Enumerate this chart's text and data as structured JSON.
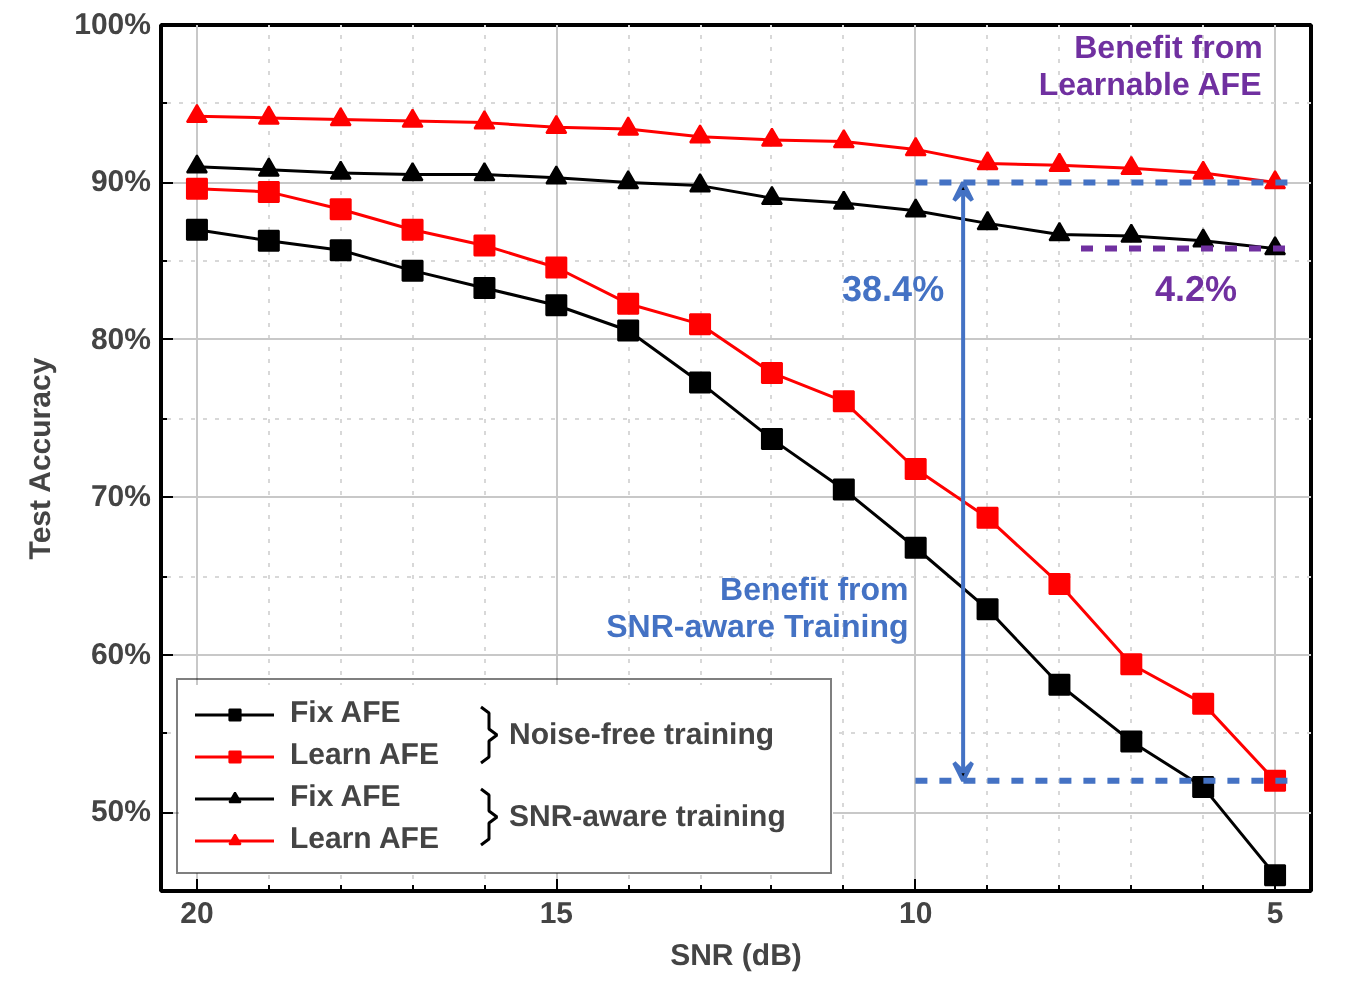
{
  "chart_data": {
    "type": "line",
    "xlabel": "SNR (dB)",
    "ylabel": "Test Accuracy",
    "x": [
      20,
      19,
      18,
      17,
      16,
      15,
      14,
      13,
      12,
      11,
      10,
      9,
      8,
      7,
      6,
      5
    ],
    "series": [
      {
        "name": "Fix AFE",
        "color": "#000000",
        "marker": "square",
        "values": [
          87.0,
          86.3,
          85.7,
          84.4,
          83.3,
          82.2,
          80.6,
          77.3,
          73.7,
          70.5,
          66.8,
          62.9,
          58.1,
          54.5,
          51.6,
          46.0
        ]
      },
      {
        "name": "Learn AFE",
        "color": "#ff0000",
        "marker": "square",
        "values": [
          89.6,
          89.4,
          88.3,
          87.0,
          86.0,
          84.6,
          82.3,
          81.0,
          77.9,
          76.1,
          71.8,
          68.7,
          64.5,
          59.4,
          56.9,
          52.0
        ]
      },
      {
        "name": "Fix AFE",
        "color": "#000000",
        "marker": "triangle",
        "values": [
          91.0,
          90.8,
          90.6,
          90.5,
          90.5,
          90.3,
          90.0,
          89.8,
          89.0,
          88.7,
          88.2,
          87.4,
          86.7,
          86.6,
          86.3,
          85.8
        ]
      },
      {
        "name": "Learn AFE",
        "color": "#ff0000",
        "marker": "triangle",
        "values": [
          94.2,
          94.1,
          94.0,
          93.9,
          93.8,
          93.5,
          93.4,
          92.9,
          92.7,
          92.6,
          92.1,
          91.2,
          91.1,
          90.9,
          90.6,
          90.0
        ]
      }
    ],
    "xlim": [
      20.5,
      4.5
    ],
    "ylim": [
      45,
      100
    ],
    "xticks": [
      20,
      {
        "value": 19,
        "label": null
      },
      {
        "value": 18,
        "label": null
      },
      {
        "value": 17,
        "label": null
      },
      {
        "value": 16,
        "label": null
      },
      15,
      {
        "value": 14,
        "label": null
      },
      {
        "value": 13,
        "label": null
      },
      {
        "value": 12,
        "label": null
      },
      {
        "value": 11,
        "label": null
      },
      10,
      {
        "value": 9,
        "label": null
      },
      {
        "value": 8,
        "label": null
      },
      {
        "value": 7,
        "label": null
      },
      {
        "value": 6,
        "label": null
      },
      5
    ],
    "yticks": [
      {
        "value": 50,
        "label": "50%"
      },
      {
        "value": 55,
        "label": null
      },
      {
        "value": 60,
        "label": "60%"
      },
      {
        "value": 65,
        "label": null
      },
      {
        "value": 70,
        "label": "70%"
      },
      {
        "value": 75,
        "label": null
      },
      {
        "value": 80,
        "label": "80%"
      },
      {
        "value": 85,
        "label": null
      },
      {
        "value": 90,
        "label": "90%"
      },
      {
        "value": 95,
        "label": null
      },
      {
        "value": 100,
        "label": "100%"
      }
    ],
    "grid": true,
    "legend": "bottom left",
    "line_style": "solid",
    "ref_lines": [
      {
        "axis": "y",
        "value": 90,
        "color": "#4472c4",
        "line_style": "dashed"
      },
      {
        "axis": "y",
        "value": 52,
        "color": "#4472c4",
        "line_style": "dashed"
      },
      {
        "axis": "y",
        "value": 85.8,
        "color": "#7030a0",
        "line_style": "dashed"
      }
    ],
    "annotations": [
      "Noise-free training",
      "SNR-aware training",
      "38.4%",
      "4.2%",
      "Benefit from\nSNR-aware Training",
      "Benefit from\nLearnable AFE"
    ]
  }
}
